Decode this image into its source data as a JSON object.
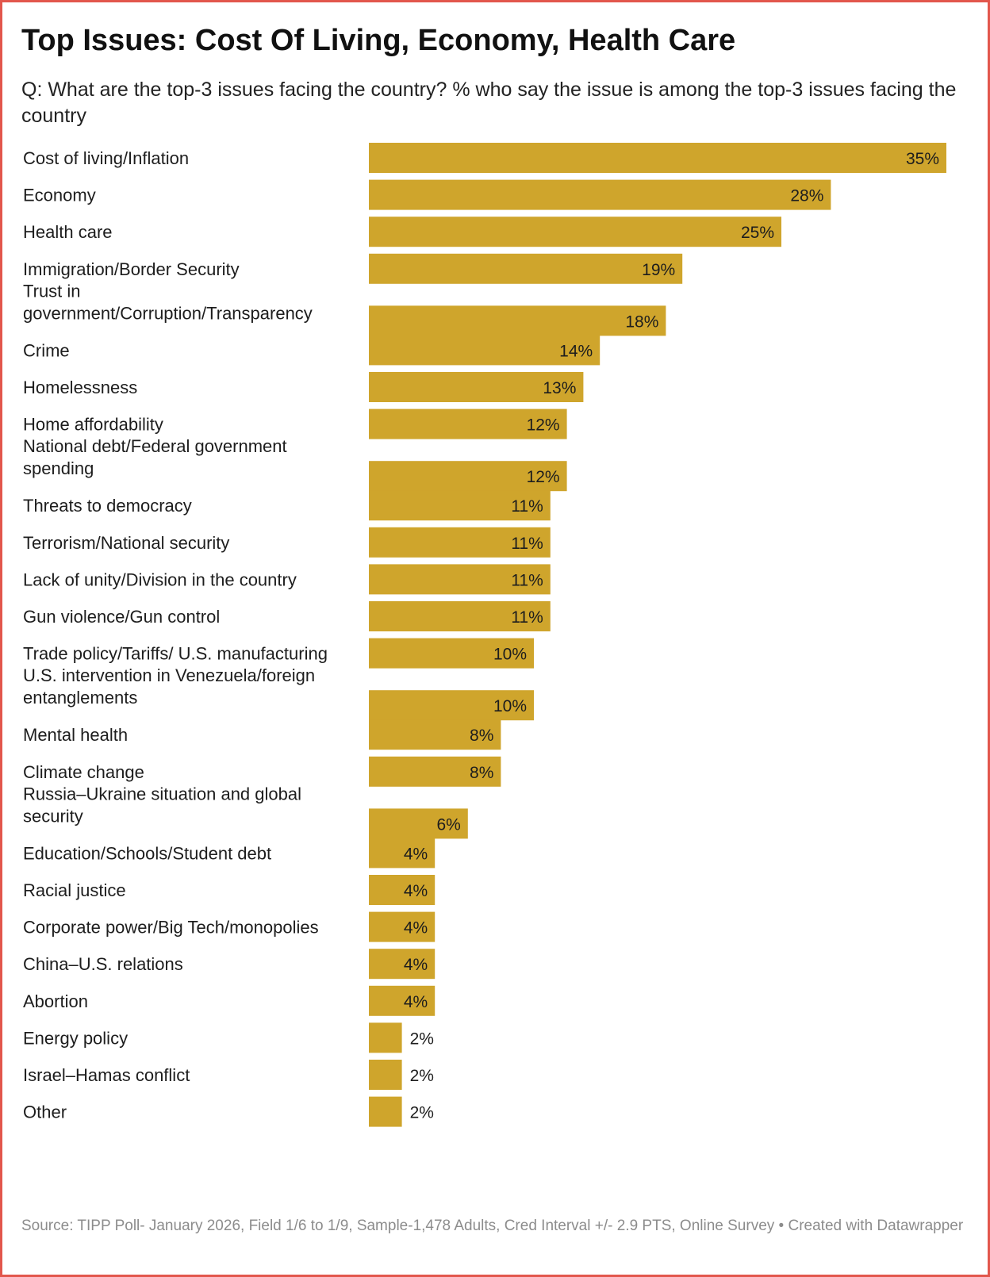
{
  "header": {
    "title": "Top Issues: Cost Of Living, Economy, Health Care",
    "subtitle": "Q: What are the top-3 issues facing the country? % who say the issue is among the top-3 issues facing the country"
  },
  "footer": {
    "source": "Source: TIPP Poll- January 2026, Field 1/6 to 1/9, Sample-1,478 Adults, Cred Interval +/- 2.9 PTS, Online Survey • Created with Datawrapper"
  },
  "colors": {
    "bar": "#cfa52c",
    "frame_border": "#e2574c"
  },
  "chart_data": {
    "type": "bar",
    "orientation": "horizontal",
    "title": "Top Issues: Cost Of Living, Economy, Health Care",
    "value_suffix": "%",
    "xlim": [
      0,
      35
    ],
    "categories": [
      [
        "Cost of living/Inflation"
      ],
      [
        "Economy"
      ],
      [
        "Health care"
      ],
      [
        "Immigration/Border Security"
      ],
      [
        "Trust in",
        "government/Corruption/Transparency"
      ],
      [
        "Crime"
      ],
      [
        "Homelessness"
      ],
      [
        "Home affordability"
      ],
      [
        "National debt/Federal government",
        "spending"
      ],
      [
        "Threats to democracy"
      ],
      [
        "Terrorism/National security"
      ],
      [
        "Lack of unity/Division in the country"
      ],
      [
        "Gun violence/Gun control"
      ],
      [
        "Trade policy/Tariffs/ U.S. manufacturing"
      ],
      [
        "U.S. intervention in Venezuela/foreign",
        "entanglements"
      ],
      [
        "Mental health"
      ],
      [
        "Climate change"
      ],
      [
        "Russia–Ukraine situation and global",
        "security"
      ],
      [
        "Education/Schools/Student debt"
      ],
      [
        "Racial justice"
      ],
      [
        "Corporate power/Big Tech/monopolies"
      ],
      [
        "China–U.S. relations"
      ],
      [
        "Abortion"
      ],
      [
        "Energy policy"
      ],
      [
        "Israel–Hamas conflict"
      ],
      [
        "Other"
      ]
    ],
    "values": [
      35,
      28,
      25,
      19,
      18,
      14,
      13,
      12,
      12,
      11,
      11,
      11,
      11,
      10,
      10,
      8,
      8,
      6,
      4,
      4,
      4,
      4,
      4,
      2,
      2,
      2
    ]
  }
}
